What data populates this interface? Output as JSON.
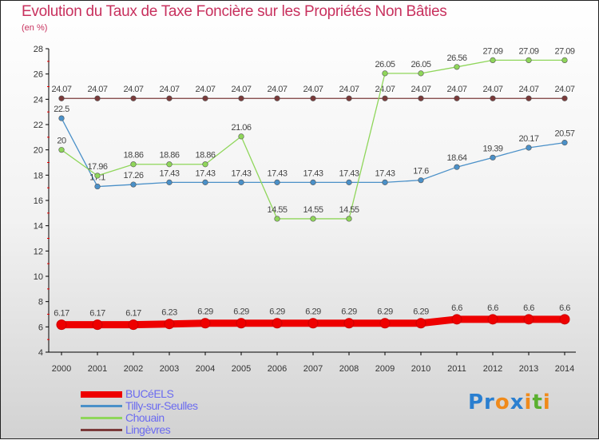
{
  "title": "Evolution du Taux de Taxe Foncière sur les Propriétés Non Bâties",
  "subtitle": "(en %)",
  "logo": "Proxiti",
  "chart_data": {
    "type": "line",
    "title": "Evolution du Taux de Taxe Foncière sur les Propriétés Non Bâties",
    "ylabel": "(en %)",
    "x": [
      2000,
      2001,
      2002,
      2003,
      2004,
      2005,
      2006,
      2007,
      2008,
      2009,
      2010,
      2011,
      2012,
      2013,
      2014
    ],
    "ylim": [
      4,
      28
    ],
    "yticks": [
      4,
      6,
      8,
      10,
      12,
      14,
      16,
      18,
      20,
      22,
      24,
      26,
      28
    ],
    "legend": "bottom-left",
    "series": [
      {
        "name": "BUCéELS",
        "color": "#ee0000",
        "values": [
          6.17,
          6.17,
          6.17,
          6.23,
          6.29,
          6.29,
          6.29,
          6.29,
          6.29,
          6.29,
          6.29,
          6.6,
          6.6,
          6.6,
          6.6
        ]
      },
      {
        "name": "Tilly-sur-Seulles",
        "color": "#4a90c8",
        "values": [
          22.5,
          17.1,
          17.26,
          17.43,
          17.43,
          17.43,
          17.43,
          17.43,
          17.43,
          17.43,
          17.6,
          18.64,
          19.39,
          20.17,
          20.57
        ]
      },
      {
        "name": "Chouain",
        "color": "#8fd65a",
        "values": [
          20,
          17.96,
          18.86,
          18.86,
          18.86,
          21.06,
          14.55,
          14.55,
          14.55,
          26.05,
          26.05,
          26.56,
          27.09,
          27.09,
          27.09
        ]
      },
      {
        "name": "Lingèvres",
        "color": "#7a3a3a",
        "values": [
          24.07,
          24.07,
          24.07,
          24.07,
          24.07,
          24.07,
          24.07,
          24.07,
          24.07,
          24.07,
          24.07,
          24.07,
          24.07,
          24.07,
          24.07
        ]
      }
    ]
  }
}
